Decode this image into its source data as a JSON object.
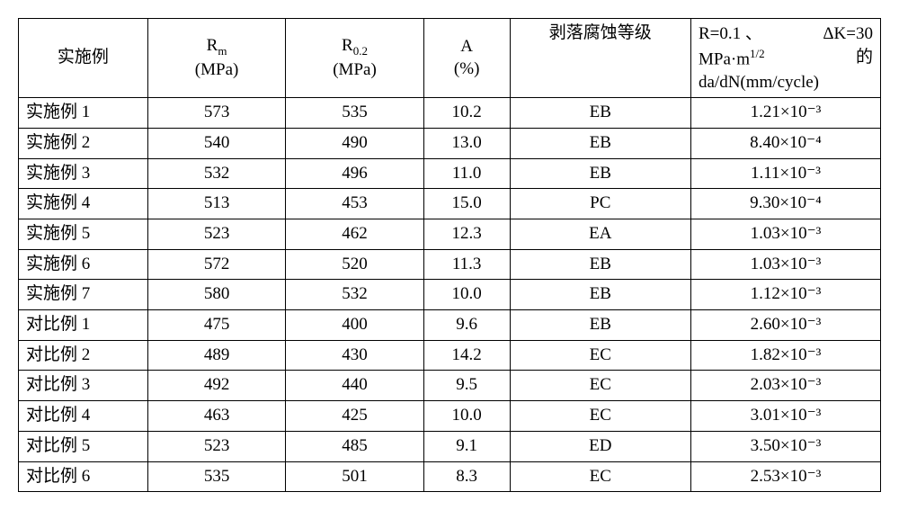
{
  "table": {
    "columns": [
      {
        "key": "name",
        "label": "实施例",
        "align": "center"
      },
      {
        "key": "rm",
        "label_html": "R<sub>m</sub><br>(MPa)",
        "label": "Rm (MPa)",
        "align": "center"
      },
      {
        "key": "r02",
        "label_html": "R<sub>0.2</sub><br>(MPa)",
        "label": "R0.2 (MPa)",
        "align": "center"
      },
      {
        "key": "a",
        "label_html": "A<br>(%)",
        "label": "A (%)",
        "align": "center"
      },
      {
        "key": "corr",
        "label": "剥落腐蚀等级",
        "align": "center"
      },
      {
        "key": "dadn",
        "label_html": "R=0.1 、 ΔK=30 MPa·m<sup>1/2</sup> 的 da/dN(mm/cycle)",
        "label": "R=0.1、ΔK=30 MPa·m^1/2 的 da/dN(mm/cycle)",
        "align": "center"
      }
    ],
    "rows": [
      {
        "name": "实施例 1",
        "rm": "573",
        "r02": "535",
        "a": "10.2",
        "corr": "EB",
        "dadn": "1.21×10⁻³"
      },
      {
        "name": "实施例 2",
        "rm": "540",
        "r02": "490",
        "a": "13.0",
        "corr": "EB",
        "dadn": "8.40×10⁻⁴"
      },
      {
        "name": "实施例 3",
        "rm": "532",
        "r02": "496",
        "a": "11.0",
        "corr": "EB",
        "dadn": "1.11×10⁻³"
      },
      {
        "name": "实施例 4",
        "rm": "513",
        "r02": "453",
        "a": "15.0",
        "corr": "PC",
        "dadn": "9.30×10⁻⁴"
      },
      {
        "name": "实施例 5",
        "rm": "523",
        "r02": "462",
        "a": "12.3",
        "corr": "EA",
        "dadn": "1.03×10⁻³"
      },
      {
        "name": "实施例 6",
        "rm": "572",
        "r02": "520",
        "a": "11.3",
        "corr": "EB",
        "dadn": "1.03×10⁻³"
      },
      {
        "name": "实施例 7",
        "rm": "580",
        "r02": "532",
        "a": "10.0",
        "corr": "EB",
        "dadn": "1.12×10⁻³"
      },
      {
        "name": "对比例 1",
        "rm": "475",
        "r02": "400",
        "a": "9.6",
        "corr": "EB",
        "dadn": "2.60×10⁻³"
      },
      {
        "name": "对比例 2",
        "rm": "489",
        "r02": "430",
        "a": "14.2",
        "corr": "EC",
        "dadn": "1.82×10⁻³"
      },
      {
        "name": "对比例 3",
        "rm": "492",
        "r02": "440",
        "a": "9.5",
        "corr": "EC",
        "dadn": "2.03×10⁻³"
      },
      {
        "name": "对比例 4",
        "rm": "463",
        "r02": "425",
        "a": "10.0",
        "corr": "EC",
        "dadn": "3.01×10⁻³"
      },
      {
        "name": "对比例 5",
        "rm": "523",
        "r02": "485",
        "a": "9.1",
        "corr": "ED",
        "dadn": "3.50×10⁻³"
      },
      {
        "name": "对比例 6",
        "rm": "535",
        "r02": "501",
        "a": "8.3",
        "corr": "EC",
        "dadn": "2.53×10⁻³"
      }
    ],
    "widths_pct": [
      15,
      16,
      16,
      10,
      21,
      22
    ],
    "border_color": "#000000",
    "background_color": "#ffffff",
    "font_family": "SimSun, Times New Roman, serif",
    "font_size_pt": 14,
    "header_font_size_pt": 14
  },
  "header_parts": {
    "h5_line1_left": "R=0.1",
    "h5_line1_sep": "、",
    "h5_line1_right": "ΔK=30",
    "h5_line2_left": "MPa·m",
    "h5_line2_sup": "1/2",
    "h5_line2_right": "的",
    "h5_line3": "da/dN(mm/cycle)",
    "h1_main": "R",
    "h1_sub": "m",
    "h1_unit": "(MPa)",
    "h2_main": "R",
    "h2_sub": "0.2",
    "h2_unit": "(MPa)",
    "h3_main": "A",
    "h3_unit": "(%)"
  }
}
